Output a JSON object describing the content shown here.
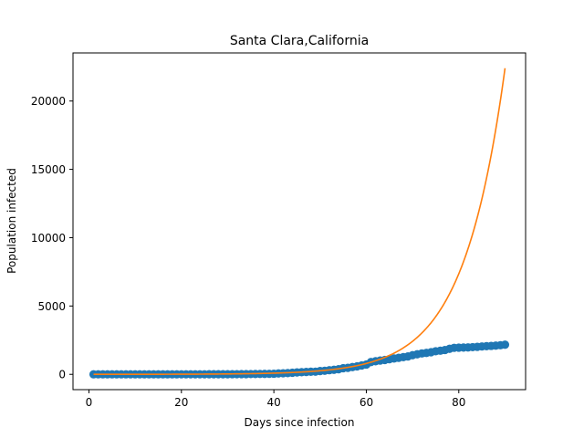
{
  "chart_data": {
    "type": "scatter",
    "title": "Santa Clara,California",
    "xlabel": "Days since infection",
    "ylabel": "Population infected",
    "xlim": [
      -3.45,
      94.45
    ],
    "ylim": [
      -1120,
      23520
    ],
    "xticks": [
      0,
      20,
      40,
      60,
      80
    ],
    "yticks": [
      0,
      5000,
      10000,
      15000,
      20000
    ],
    "grid": false,
    "series": [
      {
        "kind": "scatter",
        "color": "#1f77b4",
        "x": [
          1,
          2,
          3,
          4,
          5,
          6,
          7,
          8,
          9,
          10,
          11,
          12,
          13,
          14,
          15,
          16,
          17,
          18,
          19,
          20,
          21,
          22,
          23,
          24,
          25,
          26,
          27,
          28,
          29,
          30,
          31,
          32,
          33,
          34,
          35,
          36,
          37,
          38,
          39,
          40,
          41,
          42,
          43,
          44,
          45,
          46,
          47,
          48,
          49,
          50,
          51,
          52,
          53,
          54,
          55,
          56,
          57,
          58,
          59,
          60,
          61,
          62,
          63,
          64,
          65,
          66,
          67,
          68,
          69,
          70,
          71,
          72,
          73,
          74,
          75,
          76,
          77,
          78,
          79,
          80,
          81,
          82,
          83,
          84,
          85,
          86,
          87,
          88,
          89,
          90
        ],
        "y": [
          2,
          2,
          2,
          2,
          2,
          2,
          2,
          2,
          2,
          2,
          2,
          2,
          2,
          2,
          2,
          2,
          2,
          2,
          2,
          3,
          3,
          3,
          3,
          4,
          4,
          5,
          6,
          7,
          8,
          9,
          11,
          12,
          14,
          16,
          20,
          24,
          28,
          32,
          37,
          43,
          66,
          79,
          90,
          114,
          138,
          155,
          175,
          190,
          196,
          240,
          263,
          302,
          330,
          375,
          450,
          472,
          532,
          584,
          650,
          720,
          900,
          960,
          1010,
          1050,
          1110,
          1160,
          1210,
          1260,
          1310,
          1400,
          1470,
          1530,
          1570,
          1620,
          1690,
          1730,
          1780,
          1870,
          1940,
          1950,
          1960,
          1970,
          1990,
          2010,
          2040,
          2060,
          2080,
          2100,
          2130,
          2170
        ]
      },
      {
        "kind": "line",
        "color": "#ff7f0e",
        "fit": {
          "a": 1.0,
          "b": 0.1113
        }
      }
    ]
  }
}
